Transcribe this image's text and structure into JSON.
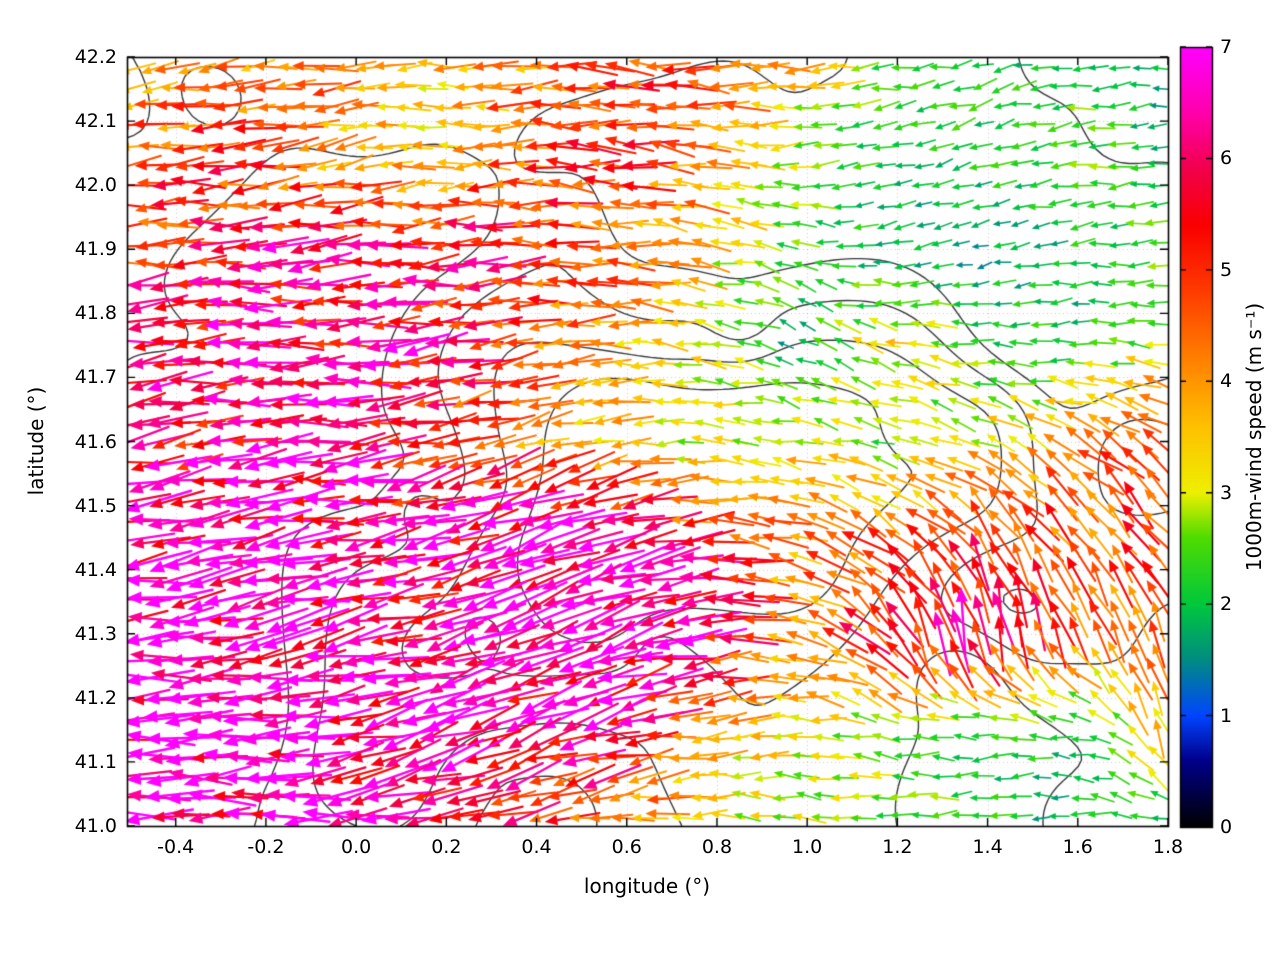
{
  "chart_data": {
    "type": "quiver",
    "title": "",
    "xlabel": "longitude (°)",
    "ylabel": "latitude (°)",
    "x_range": [
      -0.508,
      1.8
    ],
    "y_range": [
      41.0,
      42.2
    ],
    "x_tick_values": [
      -0.4,
      -0.2,
      0,
      0.2,
      0.4,
      0.6,
      0.8,
      1,
      1.2,
      1.4,
      1.6,
      1.8
    ],
    "x_tick_labels": [
      "-0.4",
      "-0.2",
      "0.0",
      "0.2",
      "0.4",
      "0.6",
      "0.8",
      "1.0",
      "1.2",
      "1.4",
      "1.6",
      "1.8"
    ],
    "y_tick_values": [
      41,
      41.1,
      41.2,
      41.3,
      41.4,
      41.5,
      41.6,
      41.7,
      41.8,
      41.9,
      42,
      42.1,
      42.2
    ],
    "y_tick_labels": [
      "41.0",
      "41.1",
      "41.2",
      "41.3",
      "41.4",
      "41.5",
      "41.6",
      "41.7",
      "41.8",
      "41.9",
      "42.0",
      "42.1",
      "42.2"
    ],
    "grid": true,
    "colorbar": {
      "label": "1000m-wind speed (m s⁻¹)",
      "range": [
        0,
        7
      ],
      "tick_values": [
        0,
        1,
        2,
        3,
        4,
        5,
        6,
        7
      ],
      "tick_labels": [
        "0",
        "1",
        "2",
        "3",
        "4",
        "5",
        "6",
        "7"
      ],
      "stops": [
        [
          0.0,
          "#000000"
        ],
        [
          0.6,
          "#00008c"
        ],
        [
          1.0,
          "#0045ff"
        ],
        [
          1.5,
          "#008c82"
        ],
        [
          2.0,
          "#00c83c"
        ],
        [
          2.6,
          "#50dc00"
        ],
        [
          3.0,
          "#eef000"
        ],
        [
          3.6,
          "#ffc000"
        ],
        [
          4.2,
          "#ff8000"
        ],
        [
          4.8,
          "#ff3c00"
        ],
        [
          5.4,
          "#fa0000"
        ],
        [
          5.9,
          "#f2004b"
        ],
        [
          6.4,
          "#ff00aa"
        ],
        [
          7.0,
          "#ff00ff"
        ]
      ]
    },
    "field": {
      "row_order": "north-to-south",
      "lons": [
        -0.5,
        -0.29,
        -0.08,
        0.13,
        0.34,
        0.55,
        0.76,
        0.97,
        1.18,
        1.39,
        1.6,
        1.8
      ],
      "lats": [
        42.2,
        42.05,
        41.9,
        41.75,
        41.6,
        41.45,
        41.3,
        41.15,
        41.0
      ],
      "speed_ms": [
        [
          4.2,
          4.0,
          4.5,
          3.2,
          4.0,
          4.6,
          5.0,
          3.8,
          2.4,
          2.0,
          2.2,
          1.6
        ],
        [
          4.6,
          5.0,
          4.0,
          3.4,
          4.4,
          5.0,
          4.4,
          2.8,
          2.0,
          2.2,
          2.6,
          2.0
        ],
        [
          5.0,
          5.4,
          6.0,
          5.2,
          5.6,
          4.6,
          3.8,
          2.4,
          1.8,
          1.6,
          2.0,
          2.4
        ],
        [
          5.6,
          6.0,
          5.6,
          6.2,
          5.0,
          4.0,
          3.2,
          1.6,
          3.4,
          2.4,
          2.0,
          3.0
        ],
        [
          6.0,
          5.6,
          6.6,
          5.2,
          4.6,
          3.6,
          3.0,
          3.4,
          2.6,
          3.2,
          4.0,
          4.6
        ],
        [
          6.6,
          7.0,
          6.4,
          6.0,
          6.6,
          7.0,
          5.2,
          4.0,
          4.6,
          5.0,
          4.6,
          5.0
        ],
        [
          7.0,
          6.6,
          7.0,
          6.2,
          6.6,
          7.0,
          6.6,
          4.2,
          5.6,
          6.0,
          4.6,
          4.4
        ],
        [
          6.6,
          7.0,
          6.6,
          6.4,
          6.0,
          6.6,
          4.2,
          3.0,
          2.6,
          2.2,
          2.0,
          3.6
        ],
        [
          7.0,
          6.6,
          7.0,
          6.0,
          5.4,
          4.0,
          3.4,
          3.0,
          2.6,
          2.2,
          1.8,
          2.2
        ]
      ],
      "direction_deg_ccw_from_east": [
        [
          186,
          190,
          184,
          180,
          184,
          180,
          176,
          182,
          186,
          192,
          182,
          186
        ],
        [
          186,
          184,
          190,
          186,
          180,
          176,
          172,
          182,
          192,
          200,
          190,
          186
        ],
        [
          184,
          180,
          186,
          184,
          180,
          176,
          170,
          162,
          190,
          196,
          186,
          180
        ],
        [
          186,
          184,
          180,
          186,
          190,
          180,
          172,
          152,
          162,
          176,
          182,
          172
        ],
        [
          190,
          186,
          184,
          190,
          196,
          190,
          180,
          170,
          164,
          158,
          150,
          140
        ],
        [
          190,
          192,
          186,
          194,
          200,
          196,
          184,
          162,
          142,
          122,
          130,
          126
        ],
        [
          184,
          190,
          190,
          196,
          200,
          200,
          190,
          172,
          122,
          96,
          112,
          116
        ],
        [
          180,
          186,
          190,
          196,
          200,
          196,
          186,
          176,
          172,
          182,
          172,
          104
        ],
        [
          176,
          180,
          184,
          190,
          194,
          190,
          180,
          176,
          180,
          184,
          180,
          172
        ]
      ]
    },
    "contours": {
      "description": "terrain height contours",
      "color": "#383838",
      "levels": [
        0.32,
        0.46,
        0.6,
        0.74
      ],
      "seed": 20,
      "large_bumps": 42,
      "small_bumps": 110
    },
    "arrow_grid": {
      "nx": 53,
      "ny": 39,
      "jitter_seed": 9
    }
  },
  "figure": {
    "background": "#ffffff",
    "axis_color": "#000000",
    "text_color": "#000000",
    "grid_color": "rgba(0,0,0,0.2)"
  }
}
